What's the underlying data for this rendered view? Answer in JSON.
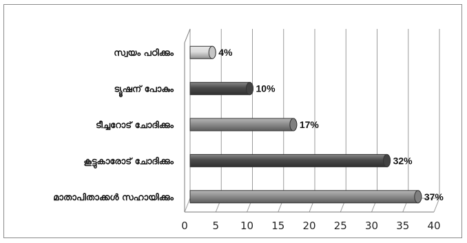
{
  "chart_data": {
    "type": "bar",
    "orientation": "horizontal",
    "style": "3d-cylinder",
    "categories": [
      "സ്വയം പഠിക്കും",
      "ട്യൂഷന് പോകും",
      "ടീച്ചറോട് ചോദിക്കും",
      "കൂട്ടുകാരോട് ചോദിക്കും",
      "മാതാപിതാക്കൾ സഹായിക്കും"
    ],
    "values": [
      4,
      10,
      17,
      32,
      37
    ],
    "data_labels": [
      "4%",
      "10%",
      "17%",
      "32%",
      "37%"
    ],
    "bar_colors": [
      "#dcdcdc",
      "#4a4a4a",
      "#8e8e8e",
      "#4a4a4a",
      "#8e8e8e"
    ],
    "xlim": [
      0,
      40
    ],
    "xticks": [
      "0",
      "5",
      "10",
      "15",
      "20",
      "25",
      "30",
      "35",
      "40"
    ],
    "grid": true,
    "title": "",
    "xlabel": "",
    "ylabel": ""
  }
}
